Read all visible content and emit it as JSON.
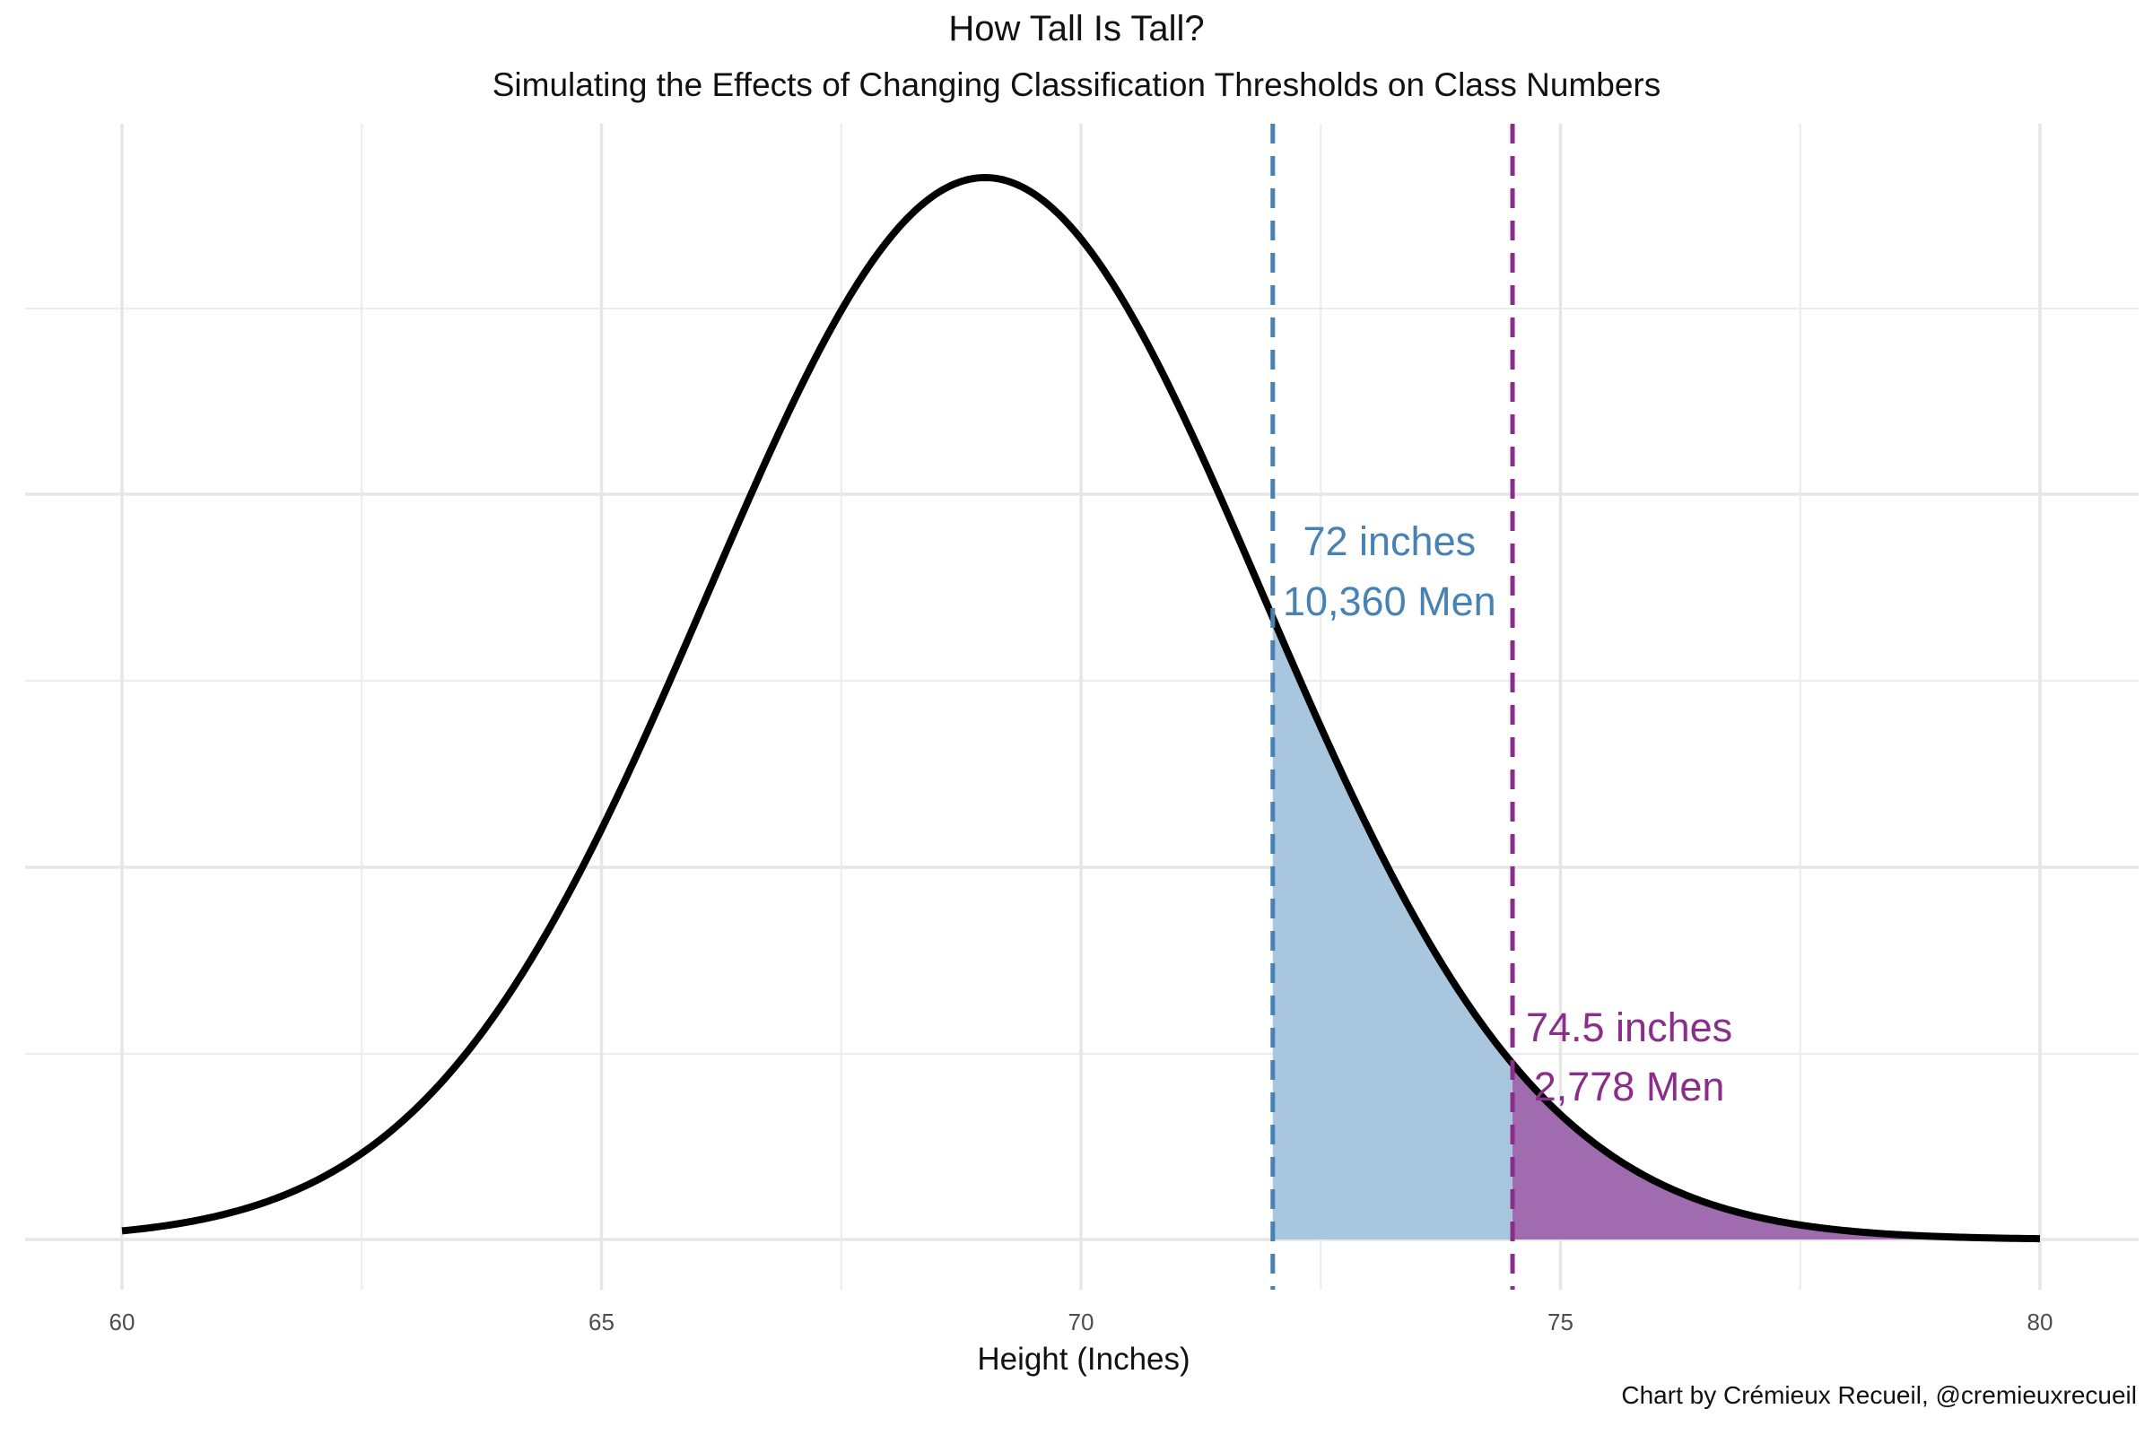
{
  "title": "How Tall Is Tall?",
  "subtitle": "Simulating the Effects of Changing Classification Thresholds on Class Numbers",
  "caption": "Chart by Crémieux Recueil, @cremieuxrecueil",
  "chart_data": {
    "type": "area",
    "distribution": "normal",
    "mean": 69,
    "sd": 2.9,
    "xlabel": "Height (Inches)",
    "ylabel": "",
    "xlim": [
      60,
      80
    ],
    "x_ticks": [
      60,
      65,
      70,
      75,
      80
    ],
    "y_tick_labels_shown": false,
    "grid": true,
    "thresholds": [
      {
        "x": 72,
        "label": "72 inches",
        "count_label": "10,360 Men",
        "color": "#4682B4"
      },
      {
        "x": 74.5,
        "label": "74.5 inches",
        "count_label": "2,778 Men",
        "color": "#8B2E8B"
      }
    ],
    "shaded_regions": [
      {
        "from": 72,
        "to": 74.5,
        "color": "#A9C6DF"
      },
      {
        "from": 74.5,
        "to": 80,
        "color": "#A16BB0"
      }
    ],
    "curve_color": "#000000"
  }
}
